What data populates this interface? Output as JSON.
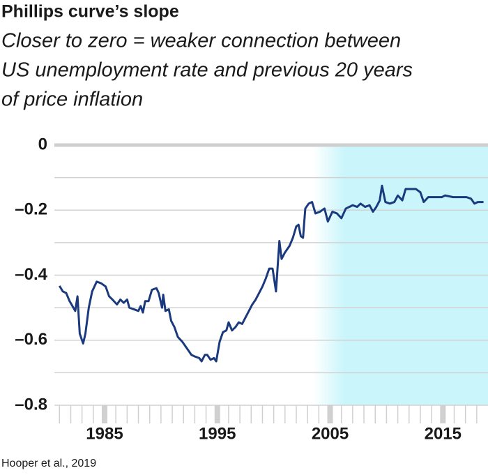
{
  "chart_data": {
    "type": "line",
    "title": "Phillips curve’s slope",
    "subtitle_lines": [
      "Closer to zero = weaker connection between",
      "US unemployment rate and previous 20 years",
      "of price inflation"
    ],
    "source": "Hooper et al., 2019",
    "x": [
      1981.0,
      1981.3,
      1981.6,
      1981.9,
      1982.4,
      1982.6,
      1982.8,
      1983.1,
      1983.3,
      1983.6,
      1983.9,
      1984.3,
      1984.7,
      1985.1,
      1985.4,
      1985.7,
      1986.1,
      1986.4,
      1986.7,
      1987.0,
      1987.2,
      1987.6,
      1988.0,
      1988.2,
      1988.4,
      1988.6,
      1988.9,
      1989.2,
      1989.6,
      1989.8,
      1990.1,
      1990.2,
      1990.4,
      1990.7,
      1990.9,
      1991.2,
      1991.5,
      1991.9,
      1992.3,
      1992.7,
      1993.0,
      1993.4,
      1993.6,
      1993.9,
      1994.1,
      1994.4,
      1994.7,
      1994.9,
      1995.2,
      1995.5,
      1995.8,
      1996.0,
      1996.3,
      1996.6,
      1996.9,
      1997.2,
      1997.5,
      1997.8,
      1998.1,
      1998.4,
      1998.7,
      1999.0,
      1999.3,
      1999.6,
      1999.9,
      2000.2,
      2000.5,
      2000.7,
      2001.0,
      2001.4,
      2001.7,
      2002.0,
      2002.2,
      2002.4,
      2002.6,
      2002.8,
      2003.1,
      2003.4,
      2003.7,
      2004.1,
      2004.5,
      2004.8,
      2005.2,
      2005.6,
      2006.0,
      2006.4,
      2006.7,
      2007.0,
      2007.4,
      2007.7,
      2008.1,
      2008.5,
      2008.8,
      2009.1,
      2009.4,
      2009.6,
      2009.9,
      2010.3,
      2010.7,
      2011.0,
      2011.4,
      2011.7,
      2012.2,
      2012.6,
      2013.0,
      2013.3,
      2013.7,
      2014.3,
      2014.9,
      2015.2,
      2015.9,
      2016.5,
      2017.1,
      2017.5,
      2017.8,
      2018.1,
      2018.6
    ],
    "series": [
      {
        "color": "#1b3a7e",
        "values": [
          -0.433,
          -0.45,
          -0.455,
          -0.48,
          -0.51,
          -0.465,
          -0.58,
          -0.61,
          -0.58,
          -0.5,
          -0.45,
          -0.42,
          -0.425,
          -0.435,
          -0.465,
          -0.475,
          -0.49,
          -0.475,
          -0.485,
          -0.475,
          -0.5,
          -0.505,
          -0.51,
          -0.495,
          -0.515,
          -0.48,
          -0.48,
          -0.445,
          -0.44,
          -0.455,
          -0.5,
          -0.46,
          -0.51,
          -0.505,
          -0.54,
          -0.56,
          -0.59,
          -0.605,
          -0.625,
          -0.645,
          -0.65,
          -0.655,
          -0.665,
          -0.645,
          -0.645,
          -0.66,
          -0.655,
          -0.665,
          -0.605,
          -0.575,
          -0.57,
          -0.545,
          -0.57,
          -0.56,
          -0.545,
          -0.55,
          -0.53,
          -0.51,
          -0.49,
          -0.475,
          -0.455,
          -0.435,
          -0.41,
          -0.38,
          -0.38,
          -0.45,
          -0.295,
          -0.35,
          -0.33,
          -0.31,
          -0.285,
          -0.25,
          -0.245,
          -0.28,
          -0.285,
          -0.195,
          -0.18,
          -0.175,
          -0.21,
          -0.205,
          -0.195,
          -0.235,
          -0.205,
          -0.21,
          -0.225,
          -0.195,
          -0.19,
          -0.185,
          -0.19,
          -0.18,
          -0.19,
          -0.185,
          -0.205,
          -0.19,
          -0.17,
          -0.125,
          -0.175,
          -0.18,
          -0.175,
          -0.155,
          -0.17,
          -0.135,
          -0.135,
          -0.135,
          -0.145,
          -0.175,
          -0.16,
          -0.16,
          -0.16,
          -0.155,
          -0.16,
          -0.16,
          -0.16,
          -0.165,
          -0.18,
          -0.175,
          -0.175
        ]
      }
    ],
    "xlim": [
      1980.55,
      2019.0
    ],
    "xticks": [
      1985,
      1995,
      2005,
      2015
    ],
    "minor_xticks": [
      1981,
      1982,
      1983,
      1984,
      1986,
      1987,
      1988,
      1989,
      1990,
      1991,
      1992,
      1993,
      1994,
      1996,
      1997,
      1998,
      1999,
      2000,
      2001,
      2002,
      2003,
      2004,
      2006,
      2007,
      2008,
      2009,
      2010,
      2011,
      2012,
      2013,
      2014,
      2016,
      2017,
      2018
    ],
    "ylim": [
      -0.8,
      0
    ],
    "yticks": [
      0,
      {
        "value": -0.2,
        "label": "–0.2"
      },
      {
        "value": -0.4,
        "label": "–0.4"
      },
      {
        "value": -0.6,
        "label": "–0.6"
      },
      {
        "value": -0.8,
        "label": "–0.8"
      }
    ],
    "minor_yticks": [
      -0.1,
      -0.3,
      -0.5,
      -0.7
    ],
    "grid": true,
    "highlight": {
      "from": 2003.5,
      "to": 2019.0,
      "color": "#c9f5fb"
    }
  }
}
